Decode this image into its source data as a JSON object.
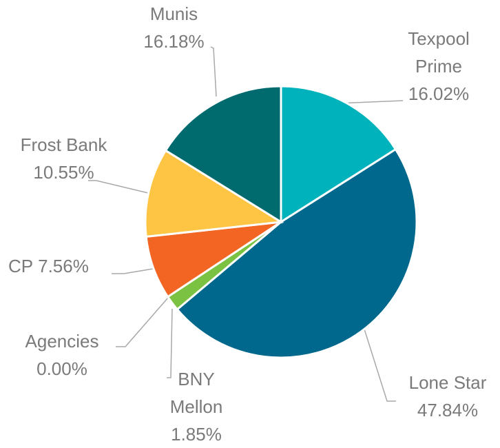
{
  "chart_data": {
    "type": "pie",
    "categories": [
      "Texpool Prime",
      "Lone Star",
      "BNY Mellon",
      "Agencies",
      "CP",
      "Frost Bank",
      "Munis"
    ],
    "values": [
      16.02,
      47.84,
      1.85,
      0.0,
      7.56,
      10.55,
      16.18
    ],
    "value_labels": [
      "16.02%",
      "47.84%",
      "1.85%",
      "0.00%",
      "7.56%",
      "10.55%",
      "16.18%"
    ],
    "colors": [
      "#00b2bb",
      "#00688c",
      "#7cc242",
      "#8a8a8a",
      "#f26522",
      "#fdc543",
      "#006b6f"
    ]
  }
}
